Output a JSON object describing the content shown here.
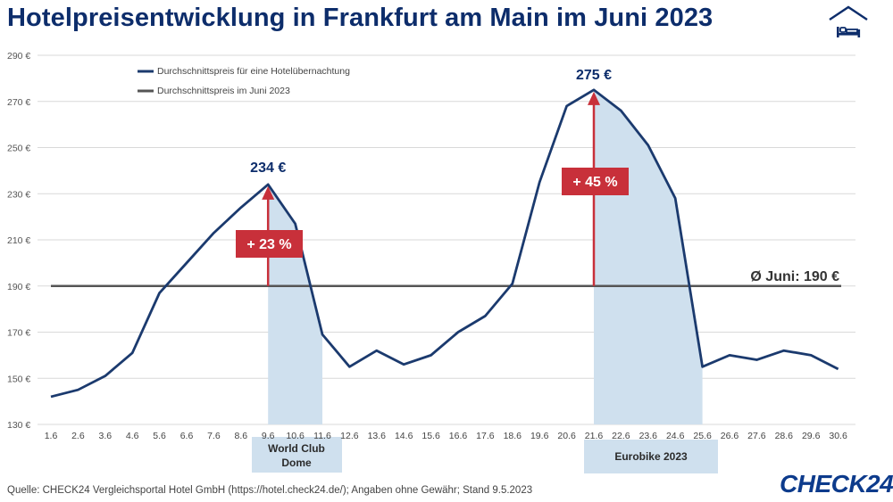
{
  "title": "Hotelpreisentwicklung in Frankfurt am Main im Juni 2023",
  "source": "Quelle: CHECK24 Vergleichsportal Hotel GmbH (https://hotel.check24.de/); Angaben ohne Gewähr; Stand 9.5.2023",
  "logo": "CHECK24",
  "icons": {
    "header": "bed-icon"
  },
  "colors": {
    "title": "#0d2d6b",
    "line": "#1b3a6e",
    "avgLine": "#555555",
    "highlight": "#cfe0ee",
    "arrow": "#c8303a",
    "grid": "#d9d9d9"
  },
  "chart_data": {
    "type": "line",
    "x": [
      "1.6",
      "2.6",
      "3.6",
      "4.6",
      "5.6",
      "6.6",
      "7.6",
      "8.6",
      "9.6",
      "10.6",
      "11.6",
      "12.6",
      "13.6",
      "14.6",
      "15.6",
      "16.6",
      "17.6",
      "18.6",
      "19.6",
      "20.6",
      "21.6",
      "22.6",
      "23.6",
      "24.6",
      "25.6",
      "26.6",
      "27.6",
      "28.6",
      "29.6",
      "30.6"
    ],
    "series": [
      {
        "name": "Durchschnittspreis für eine Hotelübernachtung",
        "values": [
          142,
          145,
          151,
          161,
          187,
          200,
          213,
          224,
          234,
          217,
          169,
          155,
          162,
          156,
          160,
          170,
          177,
          191,
          235,
          268,
          275,
          266,
          251,
          228,
          155,
          160,
          158,
          162,
          160,
          154
        ]
      },
      {
        "name": "Durchschnittspreis im Juni 2023",
        "value": 190
      }
    ],
    "ylim": [
      130,
      290
    ],
    "yticks": [
      130,
      150,
      170,
      190,
      210,
      230,
      250,
      270,
      290
    ],
    "ytick_labels": [
      "130 €",
      "150 €",
      "170 €",
      "190 €",
      "210 €",
      "230 €",
      "250 €",
      "270 €",
      "290 €"
    ],
    "grid": true,
    "legend_position": "top-left",
    "annotations": {
      "peak1_label": "234 €",
      "peak2_label": "275 €",
      "avg_label": "Ø Juni: 190 €",
      "increase1": "+ 23 %",
      "increase2": "+ 45 %"
    },
    "events": [
      {
        "label_line1": "World Club",
        "label_line2": "Dome",
        "from": "9.6",
        "to": "11.6"
      },
      {
        "label": "Eurobike 2023",
        "from": "21.6",
        "to": "25.6"
      }
    ]
  }
}
